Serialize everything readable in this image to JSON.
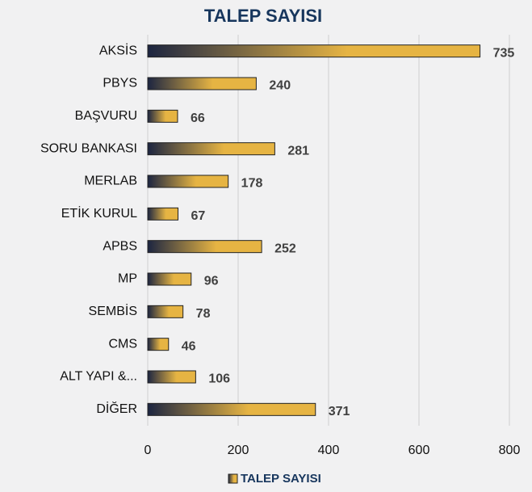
{
  "chart_data": {
    "type": "bar",
    "orientation": "horizontal",
    "title": "TALEP SAYISI",
    "categories": [
      "AKSİS",
      "PBYS",
      "BAŞVURU",
      "SORU BANKASI",
      "MERLAB",
      "ETİK KURUL",
      "APBS",
      "MP",
      "SEMBİS",
      "CMS",
      "ALT YAPI &...",
      "DİĞER"
    ],
    "series": [
      {
        "name": "TALEP SAYISI",
        "gradient": [
          "#1c2541",
          "#e6b443"
        ],
        "values": [
          735,
          240,
          66,
          281,
          178,
          67,
          252,
          96,
          78,
          46,
          106,
          371
        ]
      }
    ],
    "xlim": [
      0,
      800
    ],
    "xticks": [
      0,
      200,
      400,
      600,
      800
    ],
    "grid": true
  }
}
